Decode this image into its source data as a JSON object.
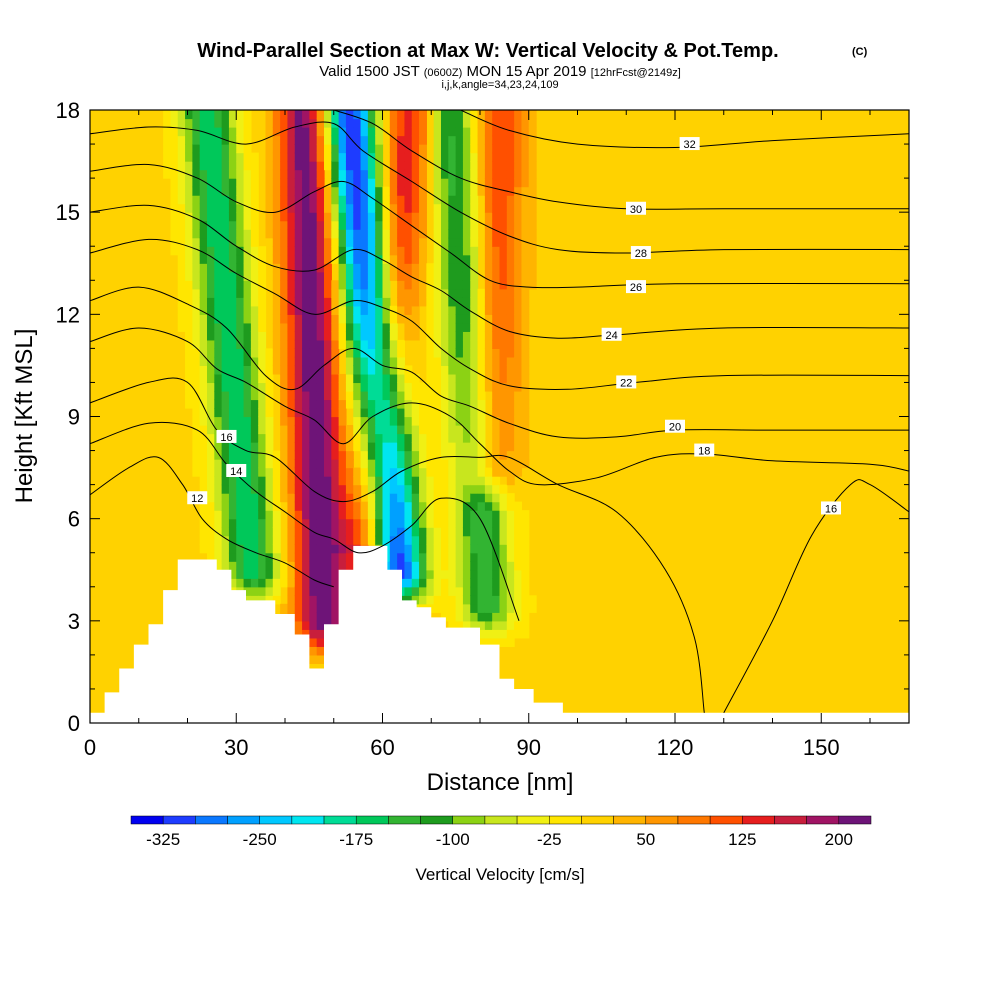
{
  "chart_data": {
    "type": "heatmap",
    "title": "Wind-Parallel Section at Max W: Vertical Velocity & Pot.Temp.",
    "title_mark": "(C)",
    "subtitle_parts": [
      "Valid 1500 JST",
      "(0600Z)",
      "MON 15 Apr 2019",
      "[12hrFcst@2149z]"
    ],
    "subtitle2": "i,j,k,angle=34,23,24,109",
    "xlabel": "Distance [nm]",
    "ylabel": "Height [Kft MSL]",
    "xlim": [
      0,
      168
    ],
    "ylim": [
      0,
      18
    ],
    "x_ticks": [
      0,
      30,
      60,
      90,
      120,
      150
    ],
    "y_ticks": [
      0,
      3,
      6,
      9,
      12,
      15,
      18
    ],
    "x_tick_labels": [
      "0",
      "30",
      "60",
      "90",
      "120",
      "150"
    ],
    "y_tick_labels": [
      "0",
      "3",
      "6",
      "9",
      "12",
      "15",
      "18"
    ],
    "colorbar": {
      "label": "Vertical Velocity [cm/s]",
      "boundaries": [
        -350,
        -325,
        -300,
        -275,
        -250,
        -225,
        -200,
        -175,
        -150,
        -125,
        -100,
        -75,
        -50,
        -25,
        0,
        25,
        50,
        75,
        100,
        125,
        150,
        175,
        200,
        225
      ],
      "tick_values": [
        -325,
        -250,
        -175,
        -100,
        -25,
        50,
        125,
        200
      ],
      "tick_labels": [
        "-325",
        "-250",
        "-175",
        "-100",
        "-25",
        "50",
        "125",
        "200"
      ],
      "colors": [
        "#0000f0",
        "#1e3cff",
        "#0a78ff",
        "#00a0ff",
        "#00c8ff",
        "#00e6f0",
        "#00dc96",
        "#00c85a",
        "#32b432",
        "#1e9b1e",
        "#8cd214",
        "#c8e61e",
        "#f0f014",
        "#ffe600",
        "#ffd200",
        "#ffb400",
        "#ff9600",
        "#ff7800",
        "#ff5000",
        "#e61e1e",
        "#c81e3c",
        "#a01464",
        "#6e1478"
      ]
    },
    "w_ridges": [
      {
        "sign": "down",
        "peak": -180,
        "x_top": 24,
        "x_bottom": 34,
        "y_bottom": 3.5
      },
      {
        "sign": "up",
        "peak": 215,
        "x_top": 44,
        "x_bottom": 48,
        "y_bottom": 2.0
      },
      {
        "sign": "down",
        "peak": -340,
        "x_top": 53,
        "x_bottom": 64,
        "y_bottom": 3.5
      },
      {
        "sign": "up",
        "peak": 145,
        "x_top": 66,
        "x_bottom": 56,
        "y_bottom": 4.2
      },
      {
        "sign": "down",
        "peak": -150,
        "x_top": 74,
        "x_bottom": 82,
        "y_bottom": 2.5
      },
      {
        "sign": "up",
        "peak": 120,
        "x_top": 84,
        "x_bottom": 82,
        "y_bottom": 6.5
      }
    ],
    "terrain_top_kft": [
      [
        0,
        0.3
      ],
      [
        3,
        0.9
      ],
      [
        6,
        1.6
      ],
      [
        9,
        2.3
      ],
      [
        12,
        2.9
      ],
      [
        15,
        3.9
      ],
      [
        18,
        4.8
      ],
      [
        26,
        4.5
      ],
      [
        29,
        3.9
      ],
      [
        32,
        3.6
      ],
      [
        38,
        3.2
      ],
      [
        42,
        2.6
      ],
      [
        45,
        1.6
      ],
      [
        48,
        2.9
      ],
      [
        51,
        4.5
      ],
      [
        54,
        5.2
      ],
      [
        61,
        4.5
      ],
      [
        64,
        3.6
      ],
      [
        67,
        3.4
      ],
      [
        70,
        3.1
      ],
      [
        73,
        2.8
      ],
      [
        80,
        2.3
      ],
      [
        84,
        1.3
      ],
      [
        87,
        1.0
      ],
      [
        91,
        0.6
      ],
      [
        97,
        0.3
      ],
      [
        168,
        0.3
      ]
    ],
    "isentropes": [
      {
        "label": "12",
        "pts": [
          [
            0,
            6.7
          ],
          [
            8,
            7.5
          ],
          [
            14,
            7.8
          ],
          [
            19,
            7.0
          ],
          [
            23,
            6.0
          ],
          [
            28,
            5.4
          ],
          [
            34,
            5.0
          ],
          [
            40,
            4.7
          ],
          [
            46,
            4.2
          ],
          [
            50,
            4.0
          ]
        ],
        "label_at": [
          22,
          6.6
        ]
      },
      {
        "label": "14",
        "pts": [
          [
            0,
            8.2
          ],
          [
            12,
            8.8
          ],
          [
            22,
            8.6
          ],
          [
            28,
            7.6
          ],
          [
            34,
            6.8
          ],
          [
            40,
            6.2
          ],
          [
            46,
            5.6
          ],
          [
            50,
            5.4
          ],
          [
            55,
            5.0
          ],
          [
            60,
            5.2
          ],
          [
            66,
            5.8
          ],
          [
            72,
            6.6
          ],
          [
            80,
            6.0
          ],
          [
            88,
            3.0
          ]
        ],
        "label_at": [
          30,
          7.4
        ]
      },
      {
        "label": "16",
        "pts": [
          [
            0,
            9.4
          ],
          [
            12,
            10.0
          ],
          [
            20,
            10.0
          ],
          [
            26,
            8.6
          ],
          [
            32,
            8.0
          ],
          [
            38,
            7.8
          ],
          [
            46,
            6.8
          ],
          [
            52,
            6.5
          ],
          [
            58,
            6.8
          ],
          [
            64,
            7.4
          ],
          [
            72,
            7.8
          ],
          [
            80,
            7.8
          ],
          [
            86,
            7.8
          ],
          [
            96,
            7.0
          ],
          [
            108,
            6.2
          ],
          [
            118,
            4.5
          ],
          [
            124,
            2.5
          ],
          [
            126,
            0.3
          ]
        ],
        "label_at": [
          28,
          8.4
        ]
      },
      {
        "label": "16",
        "pts": [
          [
            130,
            0.3
          ],
          [
            140,
            3.0
          ],
          [
            148,
            5.5
          ],
          [
            156,
            7.0
          ],
          [
            160,
            7.0
          ],
          [
            168,
            6.2
          ]
        ],
        "label_at": [
          152,
          6.3
        ]
      },
      {
        "label": "18",
        "pts": [
          [
            0,
            11.2
          ],
          [
            10,
            11.6
          ],
          [
            20,
            11.2
          ],
          [
            26,
            10.4
          ],
          [
            32,
            10.0
          ],
          [
            40,
            9.3
          ],
          [
            46,
            8.9
          ],
          [
            52,
            8.2
          ],
          [
            58,
            9.0
          ],
          [
            66,
            9.4
          ],
          [
            74,
            9.0
          ],
          [
            80,
            8.2
          ],
          [
            86,
            7.4
          ],
          [
            92,
            7.0
          ],
          [
            104,
            7.2
          ],
          [
            116,
            7.8
          ],
          [
            126,
            7.9
          ],
          [
            140,
            7.7
          ],
          [
            160,
            7.6
          ],
          [
            168,
            7.4
          ]
        ],
        "label_at": [
          126,
          8.0
        ]
      },
      {
        "label": "20",
        "pts": [
          [
            0,
            12.4
          ],
          [
            10,
            12.8
          ],
          [
            20,
            12.3
          ],
          [
            28,
            11.6
          ],
          [
            36,
            10.2
          ],
          [
            42,
            9.8
          ],
          [
            48,
            10.5
          ],
          [
            54,
            11.0
          ],
          [
            60,
            10.5
          ],
          [
            66,
            10.3
          ],
          [
            72,
            9.6
          ],
          [
            78,
            9.3
          ],
          [
            86,
            8.8
          ],
          [
            96,
            8.4
          ],
          [
            108,
            8.4
          ],
          [
            120,
            8.6
          ],
          [
            140,
            8.6
          ],
          [
            168,
            8.6
          ]
        ],
        "label_at": [
          120,
          8.7
        ]
      },
      {
        "label": "22",
        "pts": [
          [
            0,
            13.8
          ],
          [
            12,
            14.2
          ],
          [
            22,
            13.9
          ],
          [
            30,
            13.2
          ],
          [
            38,
            12.6
          ],
          [
            46,
            12.0
          ],
          [
            54,
            12.4
          ],
          [
            60,
            12.2
          ],
          [
            66,
            11.8
          ],
          [
            72,
            11.0
          ],
          [
            78,
            10.4
          ],
          [
            86,
            9.9
          ],
          [
            98,
            9.8
          ],
          [
            112,
            10.0
          ],
          [
            130,
            10.2
          ],
          [
            168,
            10.2
          ]
        ],
        "label_at": [
          110,
          10.0
        ]
      },
      {
        "label": "24",
        "pts": [
          [
            0,
            15.0
          ],
          [
            12,
            15.2
          ],
          [
            22,
            14.8
          ],
          [
            30,
            14.0
          ],
          [
            38,
            13.4
          ],
          [
            46,
            13.3
          ],
          [
            54,
            13.9
          ],
          [
            60,
            13.6
          ],
          [
            66,
            13.1
          ],
          [
            72,
            12.7
          ],
          [
            78,
            12.1
          ],
          [
            86,
            11.5
          ],
          [
            96,
            11.3
          ],
          [
            108,
            11.4
          ],
          [
            130,
            11.6
          ],
          [
            168,
            11.6
          ]
        ],
        "label_at": [
          107,
          11.4
        ]
      },
      {
        "label": "26",
        "pts": [
          [
            0,
            16.2
          ],
          [
            12,
            16.4
          ],
          [
            22,
            16.0
          ],
          [
            30,
            15.3
          ],
          [
            38,
            15.0
          ],
          [
            46,
            15.6
          ],
          [
            52,
            15.9
          ],
          [
            58,
            15.4
          ],
          [
            66,
            14.6
          ],
          [
            74,
            13.8
          ],
          [
            82,
            13.0
          ],
          [
            90,
            12.8
          ],
          [
            100,
            12.8
          ],
          [
            120,
            12.9
          ],
          [
            168,
            12.9
          ]
        ],
        "label_at": [
          112,
          12.8
        ]
      },
      {
        "label": "28",
        "pts": [
          [
            0,
            17.3
          ],
          [
            12,
            17.5
          ],
          [
            22,
            17.4
          ],
          [
            32,
            17.0
          ],
          [
            42,
            17.5
          ],
          [
            50,
            17.6
          ],
          [
            56,
            16.8
          ],
          [
            66,
            15.9
          ],
          [
            76,
            15.0
          ],
          [
            86,
            14.3
          ],
          [
            96,
            13.9
          ],
          [
            110,
            13.8
          ],
          [
            130,
            13.9
          ],
          [
            168,
            13.9
          ]
        ],
        "label_at": [
          113,
          13.8
        ]
      },
      {
        "label": "30",
        "pts": [
          [
            50,
            18.0
          ],
          [
            58,
            17.6
          ],
          [
            66,
            16.8
          ],
          [
            76,
            16.0
          ],
          [
            86,
            15.6
          ],
          [
            96,
            15.3
          ],
          [
            110,
            15.1
          ],
          [
            130,
            15.1
          ],
          [
            168,
            15.1
          ]
        ],
        "label_at": [
          112,
          15.1
        ]
      },
      {
        "label": "32",
        "pts": [
          [
            76,
            18.0
          ],
          [
            86,
            17.4
          ],
          [
            100,
            17.0
          ],
          [
            120,
            16.9
          ],
          [
            140,
            17.1
          ],
          [
            168,
            17.3
          ]
        ],
        "label_at": [
          123,
          17.0
        ]
      }
    ]
  }
}
